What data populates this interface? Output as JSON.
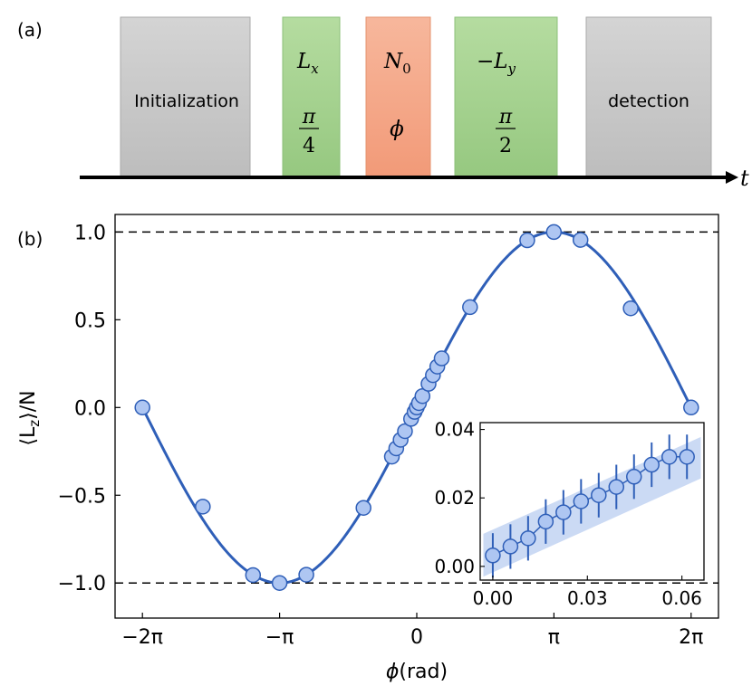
{
  "panel_a": {
    "label": "(a)",
    "time_label": "t",
    "blocks": [
      {
        "kind": "gray",
        "name": "initialization-block",
        "label": "Initialization"
      },
      {
        "kind": "green",
        "name": "lx-pulse-block",
        "top": "L",
        "top_sub": "x",
        "bottom_num": "π",
        "bottom_den": "4"
      },
      {
        "kind": "orange",
        "name": "n0-block",
        "top": "N",
        "top_sub": "0",
        "bottom": "ϕ"
      },
      {
        "kind": "green",
        "name": "ly-pulse-block",
        "top": "−L",
        "top_sub": "y",
        "bottom_num": "π",
        "bottom_den": "2"
      },
      {
        "kind": "gray",
        "name": "detection-block",
        "label": "detection"
      }
    ],
    "colors": {
      "gray": "#cccccc",
      "green": "#a6d18f",
      "orange": "#f4a383"
    }
  },
  "panel_b": {
    "label": "(b)",
    "ylabel_pre": "⟨L",
    "ylabel_sub": "z",
    "ylabel_post": "⟩/N",
    "xlabel_sym": "ϕ",
    "xlabel_unit": "(rad)"
  },
  "chart_data": [
    {
      "type": "scatter",
      "title": "",
      "xlabel": "ϕ(rad)",
      "ylabel": "⟨Lz⟩/N",
      "xlim": [
        -6.91,
        6.91
      ],
      "ylim": [
        -1.2,
        1.1
      ],
      "xticks": [
        -6.2832,
        -3.1416,
        0,
        3.1416,
        6.2832
      ],
      "xtick_labels": [
        "−2π",
        "−π",
        "0",
        "π",
        "2π"
      ],
      "yticks": [
        -1.0,
        -0.5,
        0.0,
        0.5,
        1.0
      ],
      "ytick_labels": [
        "−1.0",
        "−0.5",
        "0.0",
        "0.5",
        "1.0"
      ],
      "reference_lines": [
        1.0,
        -1.0
      ],
      "curve": "sin(x/2)",
      "series": [
        {
          "x": [
            -6.2832,
            -4.9,
            -3.75,
            -3.1416,
            -2.53,
            -1.22,
            -0.57,
            -0.47,
            -0.37,
            -0.27,
            -0.13,
            -0.05,
            0.0,
            0.05,
            0.13,
            0.27,
            0.37,
            0.47,
            0.57,
            1.22,
            3.14,
            2.53,
            3.75,
            4.9,
            6.2832
          ],
          "y": [
            0.0,
            -0.565,
            -0.955,
            -1.0,
            -0.953,
            -0.572,
            -0.28,
            -0.233,
            -0.184,
            -0.135,
            -0.065,
            -0.025,
            0.0,
            0.025,
            0.065,
            0.135,
            0.184,
            0.233,
            0.28,
            0.572,
            1.0,
            0.953,
            0.955,
            0.565,
            0.0
          ]
        }
      ],
      "colors": {
        "line": "#2f5fb8",
        "marker_fill": "#aec6f2",
        "marker_edge": "#2f5fb8"
      }
    },
    {
      "type": "scatter",
      "title": "",
      "xlim": [
        -0.004,
        0.067
      ],
      "ylim": [
        -0.004,
        0.042
      ],
      "xticks": [
        0.0,
        0.03,
        0.06
      ],
      "xtick_labels": [
        "0.00",
        "0.03",
        "0.06"
      ],
      "yticks": [
        0.0,
        0.02,
        0.04
      ],
      "ytick_labels": [
        "0.00",
        "0.02",
        "0.04"
      ],
      "series": [
        {
          "x": [
            0.0,
            0.0056,
            0.0112,
            0.0168,
            0.0224,
            0.028,
            0.0336,
            0.0392,
            0.0448,
            0.0504,
            0.056,
            0.0616
          ],
          "y": [
            0.0032,
            0.0058,
            0.0082,
            0.0131,
            0.0158,
            0.019,
            0.0208,
            0.0232,
            0.0262,
            0.0297,
            0.032,
            0.032
          ],
          "yerr": 0.0065
        }
      ],
      "band": {
        "lower_at_0": -0.003,
        "upper_at_0": 0.0095,
        "lower_at_end": 0.0257,
        "upper_at_end": 0.0378
      }
    }
  ]
}
